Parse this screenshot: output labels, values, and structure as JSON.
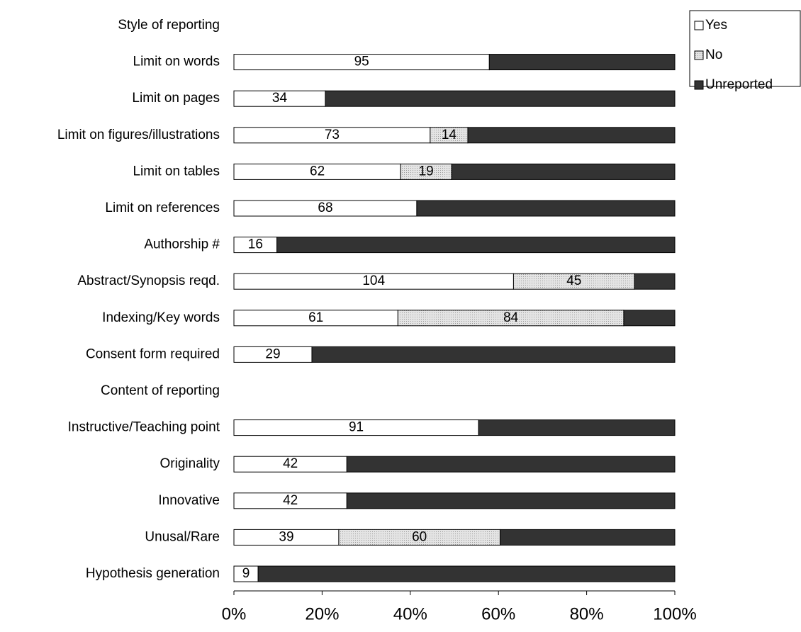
{
  "chart_data": {
    "type": "bar",
    "orientation": "horizontal",
    "stacked": "percent",
    "categories": [
      "Style of reporting",
      "Limit on words",
      "Limit on pages",
      "Limit on figures/illustrations",
      "Limit on tables",
      "Limit on references",
      "Authorship #",
      "Abstract/Synopsis reqd.",
      "Indexing/Key words",
      "Consent form required",
      "Content of reporting",
      "Instructive/Teaching point",
      "Originality",
      "Innovative",
      "Unusal/Rare",
      "Hypothesis generation"
    ],
    "series": [
      {
        "name": "Yes",
        "color": "#ffffff",
        "data_labels": true,
        "values": [
          null,
          95,
          34,
          73,
          62,
          68,
          16,
          104,
          61,
          29,
          null,
          91,
          42,
          42,
          39,
          9
        ]
      },
      {
        "name": "No",
        "color": "#d9d9d9",
        "data_labels": true,
        "values": [
          null,
          0,
          0,
          14,
          19,
          0,
          0,
          45,
          84,
          0,
          null,
          0,
          0,
          0,
          60,
          0
        ]
      },
      {
        "name": "Unreported",
        "color": "#333333",
        "data_labels": false,
        "values": [
          null,
          69,
          130,
          77,
          83,
          96,
          148,
          15,
          19,
          135,
          null,
          73,
          122,
          122,
          65,
          155
        ]
      }
    ],
    "xlim": [
      0,
      100
    ],
    "xticks": [
      {
        "value": 0,
        "label": "0%"
      },
      {
        "value": 20,
        "label": "20%"
      },
      {
        "value": 40,
        "label": "40%"
      },
      {
        "value": 60,
        "label": "60%"
      },
      {
        "value": 80,
        "label": "80%"
      },
      {
        "value": 100,
        "label": "100%"
      }
    ],
    "legend": "top-right"
  }
}
